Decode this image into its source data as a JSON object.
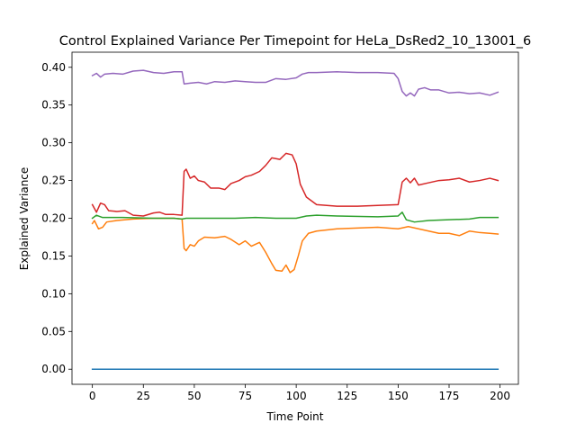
{
  "chart_data": {
    "type": "line",
    "title": "Control Explained Variance Per Timepoint for HeLa_DsRed2_10_13001_6",
    "xlabel": "Time Point",
    "ylabel": "Explained Variance",
    "xlim": [
      -10,
      209
    ],
    "ylim": [
      -0.02,
      0.42
    ],
    "xticks": [
      0,
      25,
      50,
      75,
      100,
      125,
      150,
      175,
      200
    ],
    "yticks": [
      0.0,
      0.05,
      0.1,
      0.15,
      0.2,
      0.25,
      0.3,
      0.35,
      0.4
    ],
    "ytick_labels": [
      "0.00",
      "0.05",
      "0.10",
      "0.15",
      "0.20",
      "0.25",
      "0.30",
      "0.35",
      "0.40"
    ],
    "grid": false,
    "legend": "none",
    "series": [
      {
        "color": "#1f77b4",
        "points": [
          [
            0,
            0.0
          ],
          [
            199,
            0.0
          ]
        ]
      },
      {
        "color": "#ff7f0e",
        "points": [
          [
            0,
            0.193
          ],
          [
            1,
            0.197
          ],
          [
            3,
            0.186
          ],
          [
            5,
            0.188
          ],
          [
            7,
            0.195
          ],
          [
            12,
            0.197
          ],
          [
            20,
            0.199
          ],
          [
            30,
            0.2
          ],
          [
            40,
            0.2
          ],
          [
            44,
            0.199
          ],
          [
            45,
            0.16
          ],
          [
            46,
            0.157
          ],
          [
            48,
            0.165
          ],
          [
            50,
            0.163
          ],
          [
            52,
            0.17
          ],
          [
            55,
            0.175
          ],
          [
            60,
            0.174
          ],
          [
            65,
            0.176
          ],
          [
            68,
            0.172
          ],
          [
            72,
            0.165
          ],
          [
            75,
            0.17
          ],
          [
            78,
            0.163
          ],
          [
            82,
            0.168
          ],
          [
            85,
            0.155
          ],
          [
            88,
            0.14
          ],
          [
            90,
            0.131
          ],
          [
            93,
            0.13
          ],
          [
            95,
            0.138
          ],
          [
            97,
            0.128
          ],
          [
            99,
            0.132
          ],
          [
            101,
            0.15
          ],
          [
            103,
            0.17
          ],
          [
            106,
            0.18
          ],
          [
            110,
            0.183
          ],
          [
            120,
            0.186
          ],
          [
            130,
            0.187
          ],
          [
            140,
            0.188
          ],
          [
            150,
            0.186
          ],
          [
            155,
            0.189
          ],
          [
            160,
            0.186
          ],
          [
            165,
            0.183
          ],
          [
            170,
            0.18
          ],
          [
            175,
            0.18
          ],
          [
            180,
            0.177
          ],
          [
            185,
            0.183
          ],
          [
            190,
            0.181
          ],
          [
            195,
            0.18
          ],
          [
            199,
            0.179
          ]
        ]
      },
      {
        "color": "#2ca02c",
        "points": [
          [
            0,
            0.2
          ],
          [
            2,
            0.204
          ],
          [
            5,
            0.201
          ],
          [
            15,
            0.201
          ],
          [
            30,
            0.2
          ],
          [
            40,
            0.2
          ],
          [
            44,
            0.199
          ],
          [
            46,
            0.2
          ],
          [
            60,
            0.2
          ],
          [
            70,
            0.2
          ],
          [
            80,
            0.201
          ],
          [
            90,
            0.2
          ],
          [
            100,
            0.2
          ],
          [
            105,
            0.203
          ],
          [
            110,
            0.204
          ],
          [
            120,
            0.203
          ],
          [
            140,
            0.202
          ],
          [
            150,
            0.203
          ],
          [
            152,
            0.208
          ],
          [
            154,
            0.198
          ],
          [
            158,
            0.195
          ],
          [
            165,
            0.197
          ],
          [
            175,
            0.198
          ],
          [
            185,
            0.199
          ],
          [
            190,
            0.201
          ],
          [
            199,
            0.201
          ]
        ]
      },
      {
        "color": "#d62728",
        "points": [
          [
            0,
            0.218
          ],
          [
            2,
            0.208
          ],
          [
            4,
            0.22
          ],
          [
            6,
            0.218
          ],
          [
            8,
            0.21
          ],
          [
            12,
            0.209
          ],
          [
            16,
            0.21
          ],
          [
            20,
            0.204
          ],
          [
            25,
            0.203
          ],
          [
            30,
            0.207
          ],
          [
            33,
            0.208
          ],
          [
            36,
            0.205
          ],
          [
            40,
            0.205
          ],
          [
            44,
            0.204
          ],
          [
            45,
            0.262
          ],
          [
            46,
            0.265
          ],
          [
            48,
            0.253
          ],
          [
            50,
            0.256
          ],
          [
            52,
            0.25
          ],
          [
            55,
            0.248
          ],
          [
            58,
            0.24
          ],
          [
            62,
            0.24
          ],
          [
            65,
            0.238
          ],
          [
            68,
            0.246
          ],
          [
            72,
            0.25
          ],
          [
            75,
            0.255
          ],
          [
            78,
            0.257
          ],
          [
            82,
            0.262
          ],
          [
            85,
            0.27
          ],
          [
            88,
            0.28
          ],
          [
            92,
            0.278
          ],
          [
            95,
            0.286
          ],
          [
            98,
            0.284
          ],
          [
            100,
            0.272
          ],
          [
            102,
            0.245
          ],
          [
            105,
            0.228
          ],
          [
            110,
            0.218
          ],
          [
            115,
            0.217
          ],
          [
            120,
            0.216
          ],
          [
            130,
            0.216
          ],
          [
            140,
            0.217
          ],
          [
            150,
            0.218
          ],
          [
            152,
            0.248
          ],
          [
            154,
            0.253
          ],
          [
            156,
            0.247
          ],
          [
            158,
            0.253
          ],
          [
            160,
            0.244
          ],
          [
            165,
            0.247
          ],
          [
            170,
            0.25
          ],
          [
            175,
            0.251
          ],
          [
            180,
            0.253
          ],
          [
            185,
            0.248
          ],
          [
            190,
            0.25
          ],
          [
            195,
            0.253
          ],
          [
            199,
            0.25
          ]
        ]
      },
      {
        "color": "#9467bd",
        "points": [
          [
            0,
            0.389
          ],
          [
            2,
            0.392
          ],
          [
            4,
            0.387
          ],
          [
            6,
            0.391
          ],
          [
            10,
            0.392
          ],
          [
            15,
            0.391
          ],
          [
            20,
            0.395
          ],
          [
            25,
            0.396
          ],
          [
            30,
            0.393
          ],
          [
            35,
            0.392
          ],
          [
            40,
            0.394
          ],
          [
            44,
            0.394
          ],
          [
            45,
            0.378
          ],
          [
            48,
            0.379
          ],
          [
            52,
            0.38
          ],
          [
            56,
            0.378
          ],
          [
            60,
            0.381
          ],
          [
            65,
            0.38
          ],
          [
            70,
            0.382
          ],
          [
            75,
            0.381
          ],
          [
            80,
            0.38
          ],
          [
            85,
            0.38
          ],
          [
            90,
            0.385
          ],
          [
            95,
            0.384
          ],
          [
            100,
            0.386
          ],
          [
            103,
            0.391
          ],
          [
            106,
            0.393
          ],
          [
            110,
            0.393
          ],
          [
            120,
            0.394
          ],
          [
            130,
            0.393
          ],
          [
            140,
            0.393
          ],
          [
            148,
            0.392
          ],
          [
            150,
            0.385
          ],
          [
            152,
            0.368
          ],
          [
            154,
            0.362
          ],
          [
            156,
            0.366
          ],
          [
            158,
            0.362
          ],
          [
            160,
            0.371
          ],
          [
            163,
            0.373
          ],
          [
            166,
            0.37
          ],
          [
            170,
            0.37
          ],
          [
            175,
            0.366
          ],
          [
            180,
            0.367
          ],
          [
            185,
            0.365
          ],
          [
            190,
            0.366
          ],
          [
            195,
            0.363
          ],
          [
            199,
            0.367
          ]
        ]
      }
    ]
  }
}
